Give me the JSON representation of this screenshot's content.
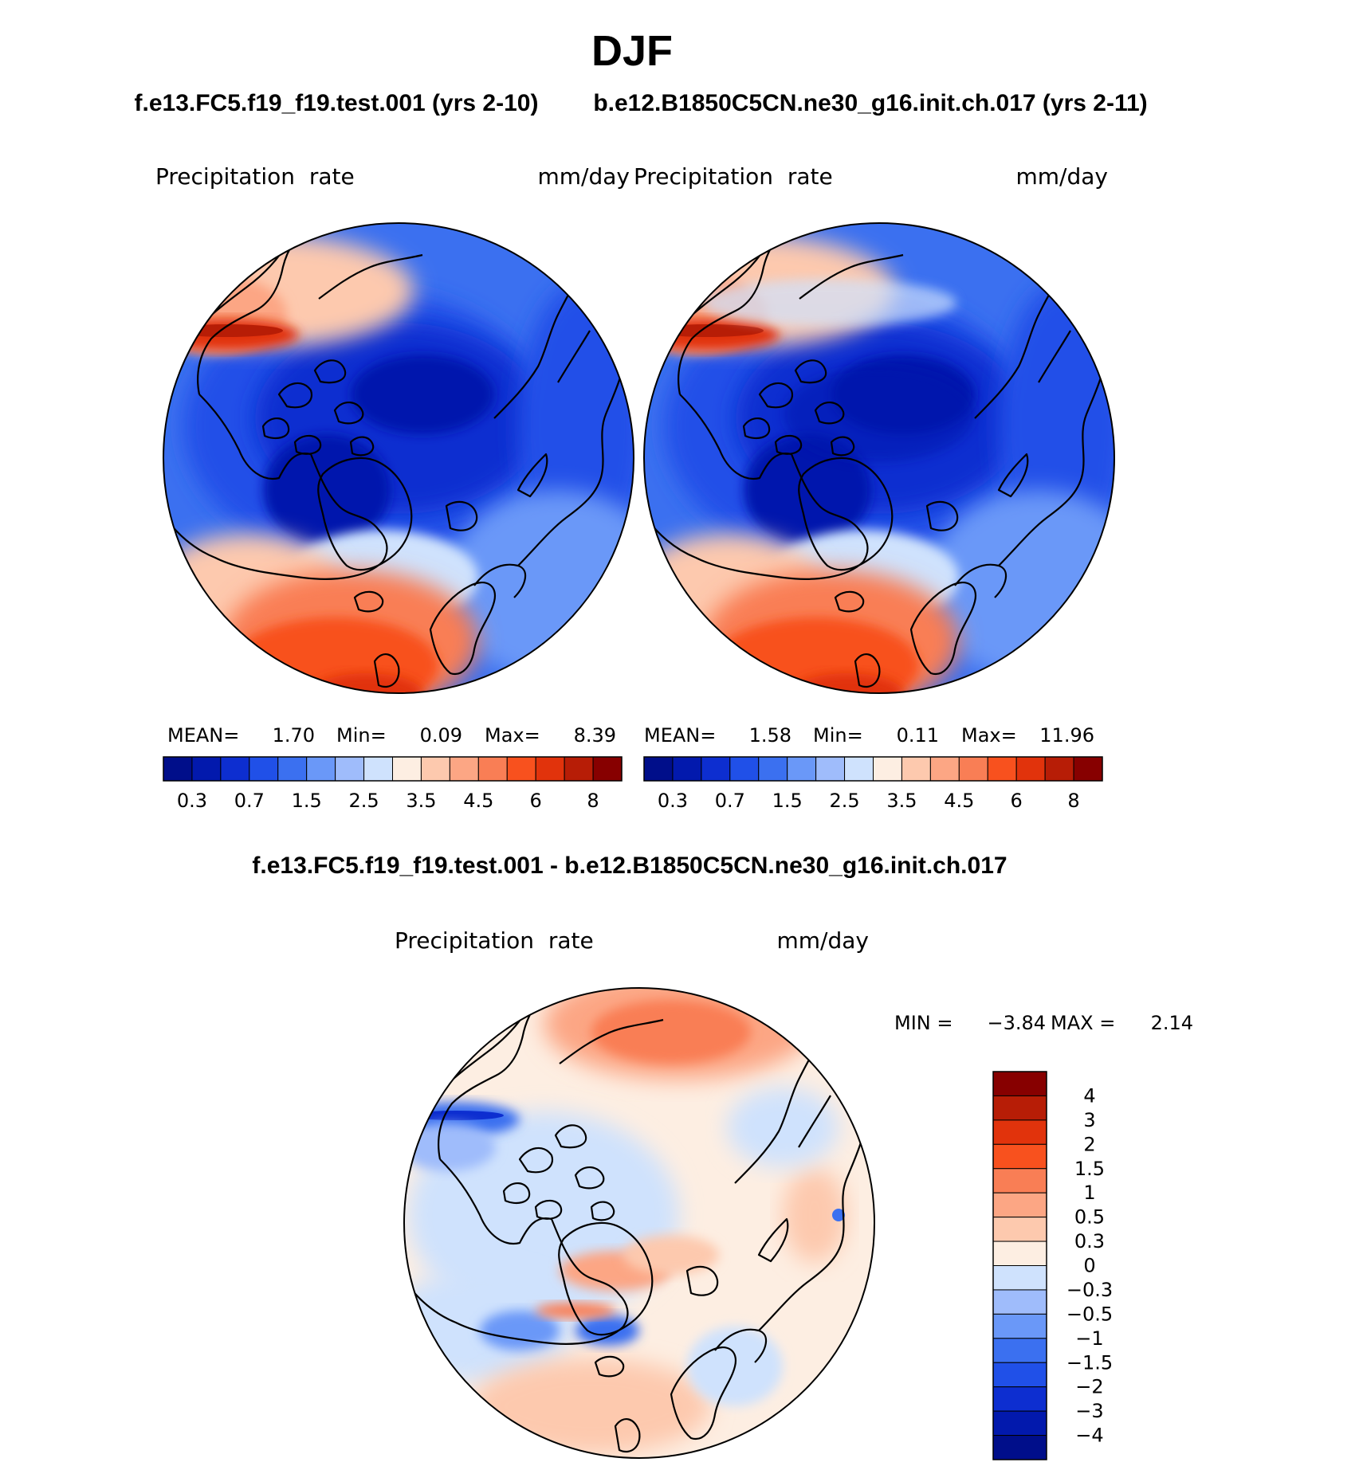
{
  "figure": {
    "season": "DJF",
    "title_left_case": "f.e13.FC5.f19_f19.test.001 (yrs 2-10)",
    "title_right_case": "b.e12.B1850C5CN.ne30_g16.init.ch.017 (yrs 2-11)",
    "diff_title": "f.e13.FC5.f19_f19.test.001 - b.e12.B1850C5CN.ne30_g16.init.ch.017"
  },
  "panels": [
    {
      "id": "test",
      "variable": "Precipitation  rate",
      "units": "mm/day",
      "stats": {
        "mean_label": "MEAN=",
        "mean": "1.70",
        "min_label": "Min=",
        "min": "0.09",
        "max_label": "Max=",
        "max": "8.39"
      }
    },
    {
      "id": "control",
      "variable": "Precipitation  rate",
      "units": "mm/day",
      "stats": {
        "mean_label": "MEAN=",
        "mean": "1.58",
        "min_label": "Min=",
        "min": "0.11",
        "max_label": "Max=",
        "max": "11.96"
      }
    },
    {
      "id": "difference",
      "variable": "Precipitation  rate",
      "units": "mm/day",
      "stats": {
        "min_label": "MIN =",
        "min": "−3.84",
        "max_label": "MAX =",
        "max": "2.14"
      }
    }
  ],
  "chart_data": [
    {
      "type": "heatmap",
      "projection": "north-polar-stereographic",
      "title": "f.e13.FC5.f19_f19.test.001 (yrs 2-10)",
      "variable": "Precipitation rate",
      "units": "mm/day",
      "colorbar_levels": [
        "0.3",
        "0.7",
        "1.5",
        "2.5",
        "3.5",
        "4.5",
        "6",
        "8"
      ],
      "colorbar_colors": [
        "#000e8a",
        "#0219ad",
        "#0d2ed0",
        "#2050e8",
        "#3b70f0",
        "#6a98f8",
        "#9fbcfb",
        "#cfe2fd",
        "#fdeee2",
        "#fdc9ae",
        "#fca684",
        "#f97e55",
        "#f8511e",
        "#e1330c",
        "#b71d06",
        "#870000"
      ]
    },
    {
      "type": "heatmap",
      "projection": "north-polar-stereographic",
      "title": "b.e12.B1850C5CN.ne30_g16.init.ch.017 (yrs 2-11)",
      "variable": "Precipitation rate",
      "units": "mm/day",
      "colorbar_levels": [
        "0.3",
        "0.7",
        "1.5",
        "2.5",
        "3.5",
        "4.5",
        "6",
        "8"
      ],
      "colorbar_colors": [
        "#000e8a",
        "#0219ad",
        "#0d2ed0",
        "#2050e8",
        "#3b70f0",
        "#6a98f8",
        "#9fbcfb",
        "#cfe2fd",
        "#fdeee2",
        "#fdc9ae",
        "#fca684",
        "#f97e55",
        "#f8511e",
        "#e1330c",
        "#b71d06",
        "#870000"
      ]
    },
    {
      "type": "heatmap",
      "projection": "north-polar-stereographic",
      "title": "f.e13.FC5.f19_f19.test.001 - b.e12.B1850C5CN.ne30_g16.init.ch.017",
      "variable": "Precipitation rate",
      "units": "mm/day",
      "colorbar_levels": [
        "4",
        "3",
        "2",
        "1.5",
        "1",
        "0.5",
        "0.3",
        "0",
        "−0.3",
        "−0.5",
        "−1",
        "−1.5",
        "−2",
        "−3",
        "−4"
      ],
      "colorbar_colors": [
        "#870000",
        "#b71d06",
        "#e1330c",
        "#f8511e",
        "#f97e55",
        "#fca684",
        "#fdc9ae",
        "#fdeee2",
        "#cfe2fd",
        "#9fbcfb",
        "#6a98f8",
        "#3b70f0",
        "#2050e8",
        "#0d2ed0",
        "#0219ad",
        "#000e8a"
      ]
    }
  ]
}
